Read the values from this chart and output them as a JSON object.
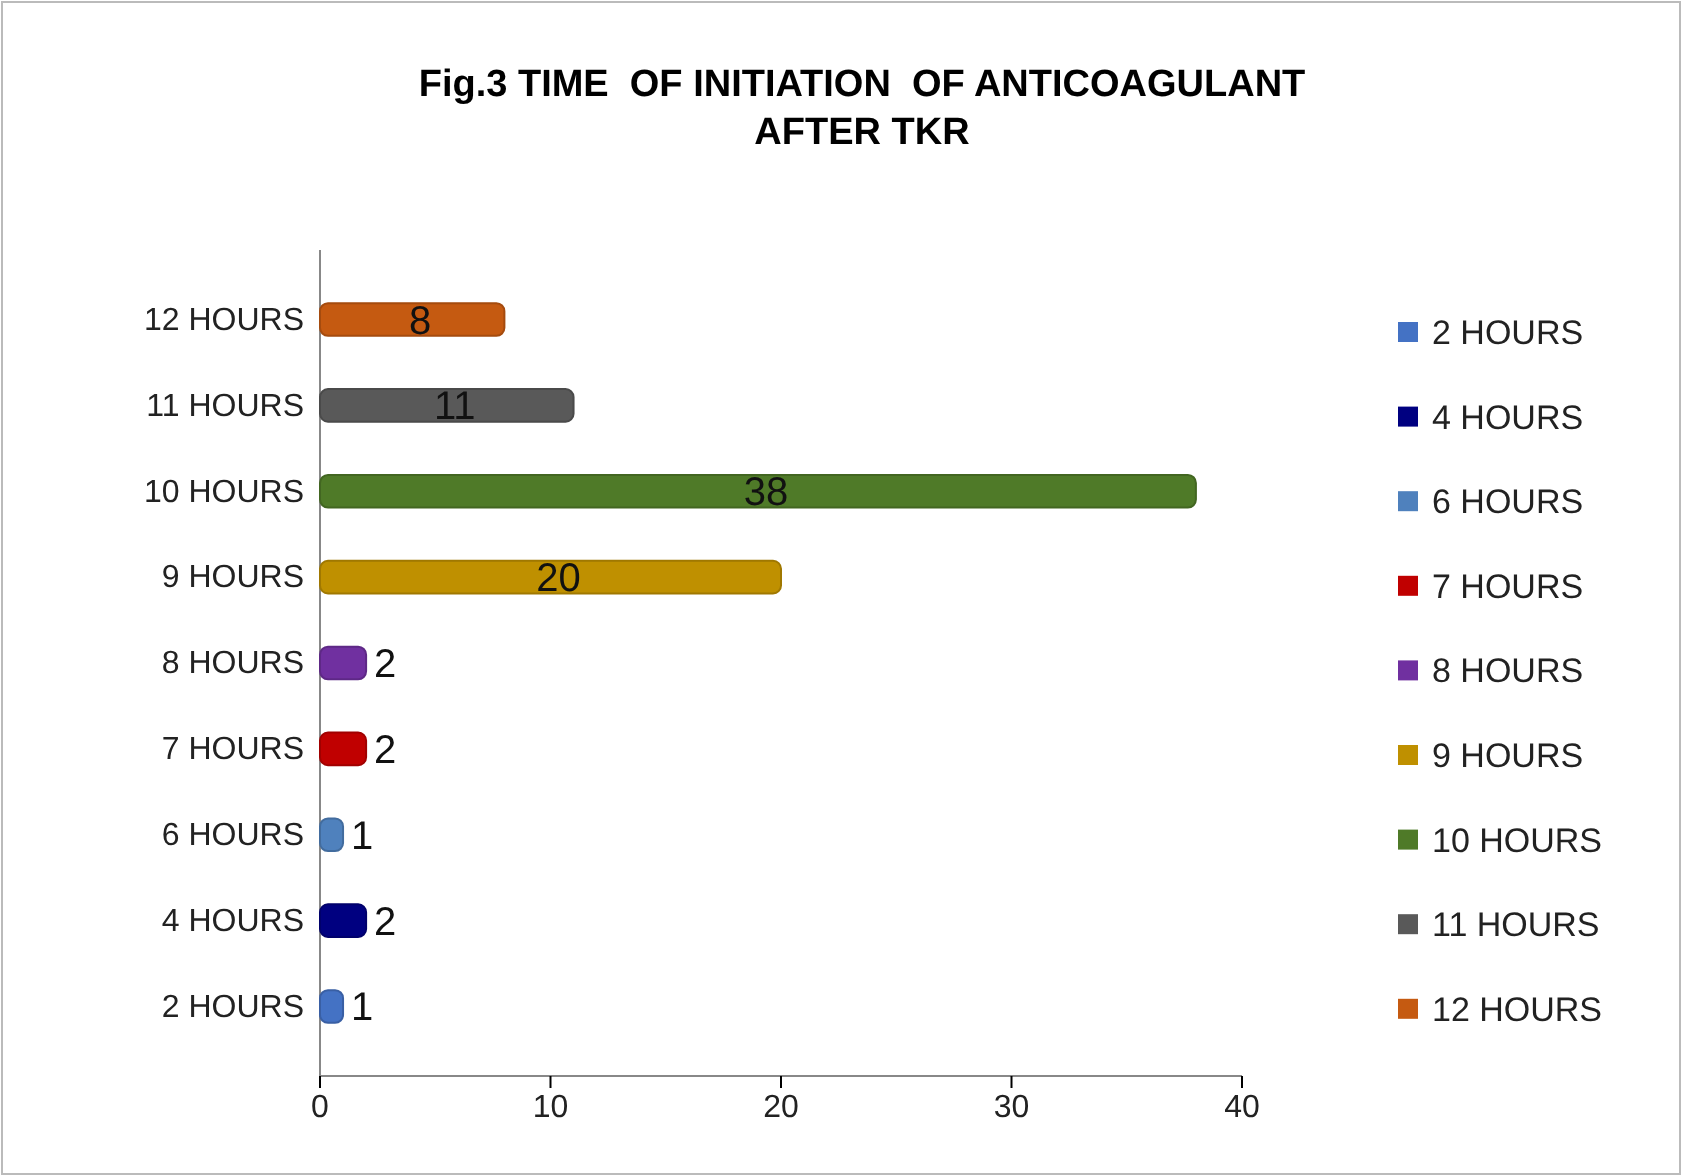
{
  "chart_data": {
    "type": "bar",
    "orientation": "horizontal",
    "title": "Fig.3 TIME  OF INITIATION  OF ANTICOAGULANT AFTER TKR",
    "categories": [
      "12 HOURS",
      "11 HOURS",
      "10 HOURS",
      "9 HOURS",
      "8 HOURS",
      "7 HOURS",
      "6 HOURS",
      "4 HOURS",
      "2 HOURS"
    ],
    "series": [
      {
        "name": "2 HOURS",
        "color": "#4472c4",
        "values": [
          null,
          null,
          null,
          null,
          null,
          null,
          null,
          null,
          1
        ]
      },
      {
        "name": "4 HOURS",
        "color": "#000080",
        "values": [
          null,
          null,
          null,
          null,
          null,
          null,
          null,
          2,
          null
        ]
      },
      {
        "name": "6 HOURS",
        "color": "#4f81bd",
        "values": [
          null,
          null,
          null,
          null,
          null,
          null,
          1,
          null,
          null
        ]
      },
      {
        "name": "7 HOURS",
        "color": "#c00000",
        "values": [
          null,
          null,
          null,
          null,
          null,
          2,
          null,
          null,
          null
        ]
      },
      {
        "name": "8 HOURS",
        "color": "#7030a0",
        "values": [
          null,
          null,
          null,
          null,
          2,
          null,
          null,
          null,
          null
        ]
      },
      {
        "name": "9 HOURS",
        "color": "#bf9000",
        "values": [
          null,
          null,
          null,
          20,
          null,
          null,
          null,
          null,
          null
        ]
      },
      {
        "name": "10 HOURS",
        "color": "#4f7a28",
        "values": [
          null,
          null,
          38,
          null,
          null,
          null,
          null,
          null,
          null
        ]
      },
      {
        "name": "11 HOURS",
        "color": "#595959",
        "values": [
          null,
          11,
          null,
          null,
          null,
          null,
          null,
          null,
          null
        ]
      },
      {
        "name": "12 HOURS",
        "color": "#c55a11",
        "values": [
          8,
          null,
          null,
          null,
          null,
          null,
          null,
          null,
          null
        ]
      }
    ],
    "xlim": [
      0,
      40
    ],
    "xticks": [
      0,
      10,
      20,
      30,
      40
    ],
    "grid": false,
    "legend": "right",
    "data_labels": true
  }
}
